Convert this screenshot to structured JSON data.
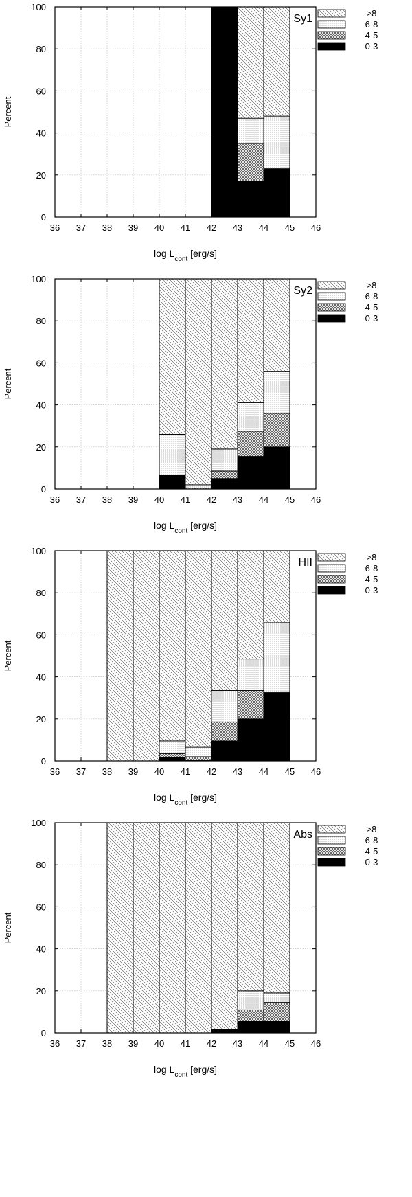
{
  "chart_data": [
    {
      "type": "bar",
      "stacked": true,
      "panel_label": "Sy1",
      "xlabel": {
        "main": "log L",
        "sub": "cont",
        "unit": " [erg/s]"
      },
      "ylabel": "Percent",
      "xlim": [
        36,
        46
      ],
      "ylim": [
        0,
        100
      ],
      "xticks": [
        "36",
        "37",
        "38",
        "39",
        "40",
        "41",
        "42",
        "43",
        "44",
        "45",
        "46"
      ],
      "yticks": [
        "0",
        "20",
        "40",
        "60",
        "80",
        "100"
      ],
      "grid": true,
      "legend_position": "outside-top-right",
      "bins": [
        [
          42,
          43
        ],
        [
          43,
          44
        ],
        [
          44,
          45
        ]
      ],
      "series": [
        {
          "name": "0-3",
          "values": [
            100,
            17,
            23
          ]
        },
        {
          "name": "4-5",
          "values": [
            0,
            18,
            0
          ]
        },
        {
          "name": "6-8",
          "values": [
            0,
            12,
            25
          ]
        },
        {
          "name": ">8",
          "values": [
            0,
            53,
            52
          ]
        }
      ]
    },
    {
      "type": "bar",
      "stacked": true,
      "panel_label": "Sy2",
      "xlabel": {
        "main": "log L",
        "sub": "cont",
        "unit": " [erg/s]"
      },
      "ylabel": "Percent",
      "xlim": [
        36,
        46
      ],
      "ylim": [
        0,
        100
      ],
      "xticks": [
        "36",
        "37",
        "38",
        "39",
        "40",
        "41",
        "42",
        "43",
        "44",
        "45",
        "46"
      ],
      "yticks": [
        "0",
        "20",
        "40",
        "60",
        "80",
        "100"
      ],
      "grid": true,
      "legend_position": "outside-top-right",
      "bins": [
        [
          40,
          41
        ],
        [
          41,
          42
        ],
        [
          42,
          43
        ],
        [
          43,
          44
        ],
        [
          44,
          45
        ]
      ],
      "series": [
        {
          "name": "0-3",
          "values": [
            6.5,
            0,
            5,
            15.5,
            20
          ]
        },
        {
          "name": "4-5",
          "values": [
            0,
            0.5,
            3.5,
            12,
            16
          ]
        },
        {
          "name": "6-8",
          "values": [
            19.5,
            1.5,
            10.5,
            13.5,
            20
          ]
        },
        {
          "name": ">8",
          "values": [
            74,
            98,
            81,
            59,
            44
          ]
        }
      ]
    },
    {
      "type": "bar",
      "stacked": true,
      "panel_label": "HII",
      "xlabel": {
        "main": "log L",
        "sub": "cont",
        "unit": " [erg/s]"
      },
      "ylabel": "Percent",
      "xlim": [
        36,
        46
      ],
      "ylim": [
        0,
        100
      ],
      "xticks": [
        "36",
        "37",
        "38",
        "39",
        "40",
        "41",
        "42",
        "43",
        "44",
        "45",
        "46"
      ],
      "yticks": [
        "0",
        "20",
        "40",
        "60",
        "80",
        "100"
      ],
      "grid": true,
      "legend_position": "outside-top-right",
      "bins": [
        [
          38,
          39
        ],
        [
          39,
          40
        ],
        [
          40,
          41
        ],
        [
          41,
          42
        ],
        [
          42,
          43
        ],
        [
          43,
          44
        ],
        [
          44,
          45
        ]
      ],
      "series": [
        {
          "name": "0-3",
          "values": [
            0,
            0,
            1.5,
            0.5,
            9.5,
            20,
            32.5
          ]
        },
        {
          "name": "4-5",
          "values": [
            0,
            0,
            2,
            1.5,
            9,
            13.5,
            0
          ]
        },
        {
          "name": "6-8",
          "values": [
            0,
            0,
            6,
            4.5,
            15,
            15,
            33.5
          ]
        },
        {
          "name": ">8",
          "values": [
            100,
            100,
            90.5,
            93.5,
            66.5,
            51.5,
            34
          ]
        }
      ]
    },
    {
      "type": "bar",
      "stacked": true,
      "panel_label": "Abs",
      "xlabel": {
        "main": "log L",
        "sub": "cont",
        "unit": " [erg/s]"
      },
      "ylabel": "Percent",
      "xlim": [
        36,
        46
      ],
      "ylim": [
        0,
        100
      ],
      "xticks": [
        "36",
        "37",
        "38",
        "39",
        "40",
        "41",
        "42",
        "43",
        "44",
        "45",
        "46"
      ],
      "yticks": [
        "0",
        "20",
        "40",
        "60",
        "80",
        "100"
      ],
      "grid": true,
      "legend_position": "outside-top-right",
      "bins": [
        [
          38,
          39
        ],
        [
          39,
          40
        ],
        [
          40,
          41
        ],
        [
          41,
          42
        ],
        [
          42,
          43
        ],
        [
          43,
          44
        ],
        [
          44,
          45
        ]
      ],
      "series": [
        {
          "name": "0-3",
          "values": [
            0,
            0,
            0,
            0,
            1.5,
            5.5,
            5.5
          ]
        },
        {
          "name": "4-5",
          "values": [
            0,
            0,
            0,
            0,
            0,
            5.5,
            9
          ]
        },
        {
          "name": "6-8",
          "values": [
            0,
            0,
            0,
            0,
            0,
            9,
            4.5
          ]
        },
        {
          "name": ">8",
          "values": [
            100,
            100,
            100,
            100,
            98.5,
            80,
            81
          ]
        }
      ]
    }
  ],
  "legend": [
    {
      "name": ">8",
      "pattern": "hatch-fine"
    },
    {
      "name": "6-8",
      "pattern": "dots"
    },
    {
      "name": "4-5",
      "pattern": "crosshatch"
    },
    {
      "name": "0-3",
      "pattern": "solid"
    }
  ],
  "colors": {
    "axis": "#000000",
    "grid": "#b4b4b4",
    "solid": "#000000",
    "background": "#ffffff"
  }
}
